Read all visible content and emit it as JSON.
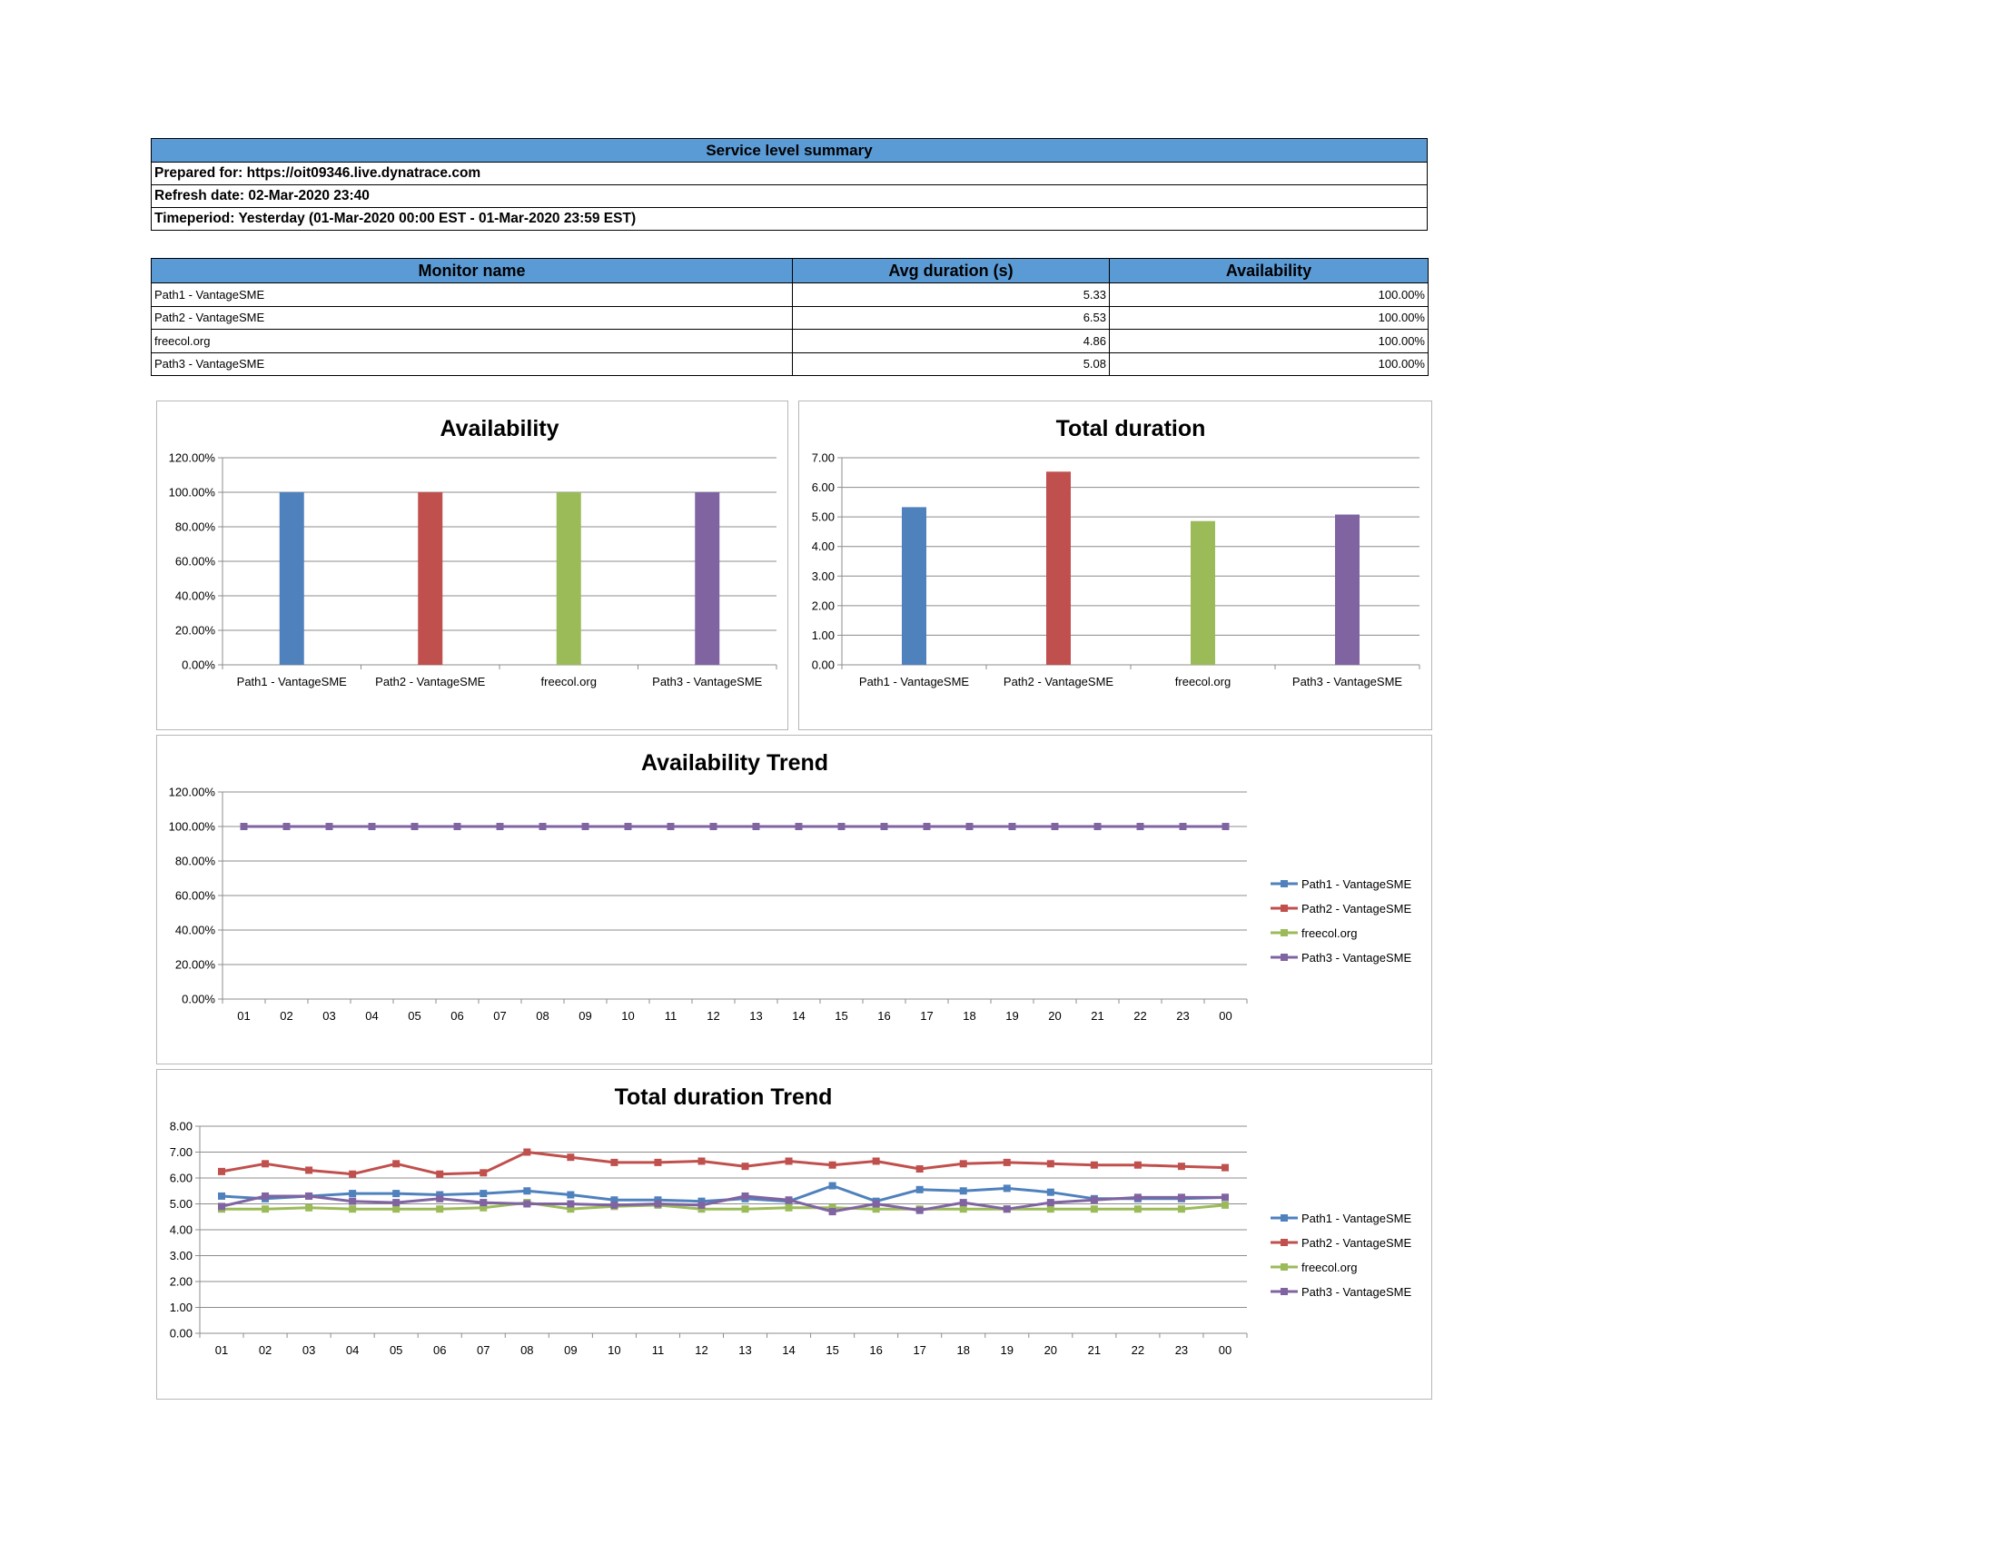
{
  "summary": {
    "header": "Service level summary",
    "prepared_for": "Prepared for: https://oit09346.live.dynatrace.com",
    "refresh_date": "Refresh date: 02-Mar-2020 23:40",
    "timeperiod": "Timeperiod: Yesterday (01-Mar-2020 00:00 EST - 01-Mar-2020 23:59 EST)"
  },
  "monitor_table": {
    "headers": [
      "Monitor name",
      "Avg duration (s)",
      "Availability"
    ],
    "rows": [
      [
        "Path1 - VantageSME",
        "5.33",
        "100.00%"
      ],
      [
        "Path2 - VantageSME",
        "6.53",
        "100.00%"
      ],
      [
        "freecol.org",
        "4.86",
        "100.00%"
      ],
      [
        "Path3 - VantageSME",
        "5.08",
        "100.00%"
      ]
    ]
  },
  "colors": {
    "header_fill": "#5b9bd5",
    "path1": "#4f81bd",
    "path2": "#c0504d",
    "freecol": "#9bbb59",
    "path3": "#8064a2"
  },
  "chart_data": [
    {
      "type": "bar",
      "title": "Availability",
      "categories": [
        "Path1 - VantageSME",
        "Path2 - VantageSME",
        "freecol.org",
        "Path3 - VantageSME"
      ],
      "values": [
        100,
        100,
        100,
        100
      ],
      "ylim": [
        0,
        120
      ],
      "yticks": [
        "0.00%",
        "20.00%",
        "40.00%",
        "60.00%",
        "80.00%",
        "100.00%",
        "120.00%"
      ],
      "grid": true
    },
    {
      "type": "bar",
      "title": "Total duration",
      "categories": [
        "Path1 - VantageSME",
        "Path2 - VantageSME",
        "freecol.org",
        "Path3 - VantageSME"
      ],
      "values": [
        5.33,
        6.53,
        4.86,
        5.08
      ],
      "ylim": [
        0,
        7
      ],
      "yticks": [
        "0.00",
        "1.00",
        "2.00",
        "3.00",
        "4.00",
        "5.00",
        "6.00",
        "7.00"
      ],
      "grid": true
    },
    {
      "type": "line",
      "title": "Availability Trend",
      "x": [
        "01",
        "02",
        "03",
        "04",
        "05",
        "06",
        "07",
        "08",
        "09",
        "10",
        "11",
        "12",
        "13",
        "14",
        "15",
        "16",
        "17",
        "18",
        "19",
        "20",
        "21",
        "22",
        "23",
        "00"
      ],
      "ylim": [
        0,
        120
      ],
      "yticks": [
        "0.00%",
        "20.00%",
        "40.00%",
        "60.00%",
        "80.00%",
        "100.00%",
        "120.00%"
      ],
      "legend_position": "right",
      "grid": true,
      "series": [
        {
          "name": "Path1 - VantageSME",
          "values": [
            100,
            100,
            100,
            100,
            100,
            100,
            100,
            100,
            100,
            100,
            100,
            100,
            100,
            100,
            100,
            100,
            100,
            100,
            100,
            100,
            100,
            100,
            100,
            100
          ]
        },
        {
          "name": "Path2 - VantageSME",
          "values": [
            100,
            100,
            100,
            100,
            100,
            100,
            100,
            100,
            100,
            100,
            100,
            100,
            100,
            100,
            100,
            100,
            100,
            100,
            100,
            100,
            100,
            100,
            100,
            100
          ]
        },
        {
          "name": "freecol.org",
          "values": [
            100,
            100,
            100,
            100,
            100,
            100,
            100,
            100,
            100,
            100,
            100,
            100,
            100,
            100,
            100,
            100,
            100,
            100,
            100,
            100,
            100,
            100,
            100,
            100
          ]
        },
        {
          "name": "Path3 - VantageSME",
          "values": [
            100,
            100,
            100,
            100,
            100,
            100,
            100,
            100,
            100,
            100,
            100,
            100,
            100,
            100,
            100,
            100,
            100,
            100,
            100,
            100,
            100,
            100,
            100,
            100
          ]
        }
      ]
    },
    {
      "type": "line",
      "title": "Total duration Trend",
      "x": [
        "01",
        "02",
        "03",
        "04",
        "05",
        "06",
        "07",
        "08",
        "09",
        "10",
        "11",
        "12",
        "13",
        "14",
        "15",
        "16",
        "17",
        "18",
        "19",
        "20",
        "21",
        "22",
        "23",
        "00"
      ],
      "ylim": [
        0,
        8
      ],
      "yticks": [
        "0.00",
        "1.00",
        "2.00",
        "3.00",
        "4.00",
        "5.00",
        "6.00",
        "7.00",
        "8.00"
      ],
      "legend_position": "right",
      "grid": true,
      "series": [
        {
          "name": "Path1 - VantageSME",
          "values": [
            5.3,
            5.2,
            5.3,
            5.4,
            5.4,
            5.35,
            5.4,
            5.5,
            5.35,
            5.15,
            5.15,
            5.1,
            5.2,
            5.1,
            5.7,
            5.1,
            5.55,
            5.5,
            5.6,
            5.45,
            5.2,
            5.2,
            5.2,
            5.25
          ]
        },
        {
          "name": "Path2 - VantageSME",
          "values": [
            6.25,
            6.55,
            6.3,
            6.15,
            6.55,
            6.15,
            6.2,
            7.0,
            6.8,
            6.6,
            6.6,
            6.65,
            6.45,
            6.65,
            6.5,
            6.65,
            6.35,
            6.55,
            6.6,
            6.55,
            6.5,
            6.5,
            6.45,
            6.4
          ]
        },
        {
          "name": "freecol.org",
          "values": [
            4.8,
            4.8,
            4.85,
            4.8,
            4.8,
            4.8,
            4.85,
            5.05,
            4.8,
            4.9,
            4.95,
            4.8,
            4.8,
            4.85,
            4.85,
            4.8,
            4.8,
            4.8,
            4.8,
            4.8,
            4.8,
            4.8,
            4.8,
            4.95
          ]
        },
        {
          "name": "Path3 - VantageSME",
          "values": [
            4.9,
            5.3,
            5.3,
            5.1,
            5.05,
            5.2,
            5.05,
            5.0,
            5.0,
            4.95,
            5.0,
            4.95,
            5.3,
            5.15,
            4.7,
            5.0,
            4.75,
            5.05,
            4.8,
            5.05,
            5.15,
            5.25,
            5.25,
            5.25
          ]
        }
      ]
    }
  ]
}
